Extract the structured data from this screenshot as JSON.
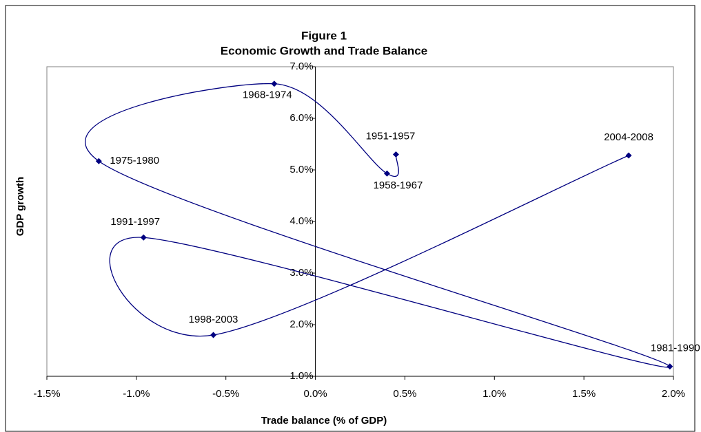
{
  "chart_data": {
    "type": "scatter",
    "title": "Figure 1",
    "subtitle": "Economic Growth and Trade Balance",
    "x_label": "Trade balance (% of GDP)",
    "y_label": "GDP growth",
    "x": [
      0.45,
      0.4,
      -0.23,
      -1.21,
      1.98,
      -0.96,
      -0.57,
      1.75
    ],
    "series": [
      {
        "color": "#000080",
        "values": [
          5.3,
          4.93,
          6.67,
          5.17,
          1.19,
          3.69,
          1.8,
          5.28
        ],
        "labels": [
          "1951-1957",
          "1958-1967",
          "1968-1974",
          "1975-1980",
          "1981-1990",
          "1991-1997",
          "1998-2003",
          "2004-2008"
        ]
      }
    ],
    "smooth": true,
    "xlim": [
      -1.5,
      2.0
    ],
    "ylim": [
      1.0,
      7.0
    ],
    "xticks": [
      {
        "value": -1.5,
        "label": "-1.5%"
      },
      {
        "value": -1.0,
        "label": "-1.0%"
      },
      {
        "value": -0.5,
        "label": "-0.5%"
      },
      {
        "value": 0,
        "label": "0.0%"
      },
      {
        "value": 0.5,
        "label": "0.5%"
      },
      {
        "value": 1.0,
        "label": "1.0%"
      },
      {
        "value": 1.5,
        "label": "1.5%"
      },
      {
        "value": 2.0,
        "label": "2.0%"
      }
    ],
    "yticks": [
      {
        "value": 1,
        "label": "1.0%"
      },
      {
        "value": 2,
        "label": "2.0%"
      },
      {
        "value": 3,
        "label": "3.0%"
      },
      {
        "value": 4,
        "label": "4.0%"
      },
      {
        "value": 5,
        "label": "5.0%"
      },
      {
        "value": 6,
        "label": "6.0%"
      },
      {
        "value": 7,
        "label": "7.0%"
      }
    ]
  }
}
